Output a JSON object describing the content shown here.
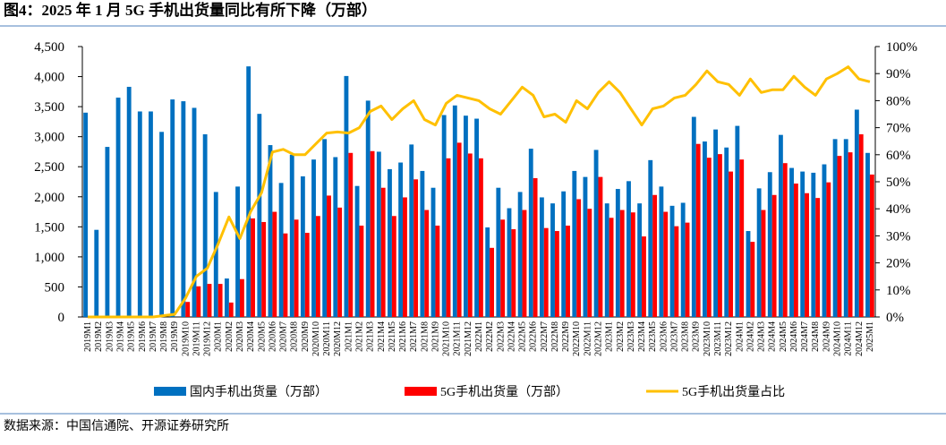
{
  "chart_data": {
    "type": "bar-line",
    "title": "图4：2025 年 1 月 5G 手机出货量同比有所下降（万部）",
    "source": "数据来源：中国信通院、开源证券研究所",
    "categories": [
      "2019M1",
      "2019M2",
      "2019M3",
      "2019M4",
      "2019M5",
      "2019M6",
      "2019M7",
      "2019M8",
      "2019M9",
      "2019M10",
      "2019M11",
      "2019M12",
      "2020M1",
      "2020M2",
      "2020M3",
      "2020M4",
      "2020M5",
      "2020M6",
      "2020M7",
      "2020M8",
      "2020M9",
      "2020M10",
      "2020M11",
      "2020M12",
      "2021M1",
      "2021M2",
      "2021M3",
      "2021M4",
      "2021M5",
      "2021M6",
      "2021M7",
      "2021M8",
      "2021M9",
      "2021M10",
      "2021M11",
      "2021M12",
      "2022M1",
      "2022M2",
      "2022M3",
      "2022M4",
      "2022M5",
      "2022M6",
      "2022M7",
      "2022M8",
      "2022M9",
      "2022M10",
      "2022M11",
      "2022M12",
      "2023M1",
      "2023M2",
      "2023M3",
      "2023M4",
      "2023M5",
      "2023M6",
      "2023M7",
      "2023M8",
      "2023M9",
      "2023M10",
      "2023M11",
      "2023M12",
      "2024M1",
      "2024M2",
      "2024M3",
      "2024M4",
      "2024M5",
      "2024M6",
      "2024M7",
      "2024M8",
      "2024M9",
      "2024M10",
      "2024M11",
      "2024M12",
      "2025M1"
    ],
    "series": [
      {
        "name": "国内手机出货量（万部）",
        "kind": "bar",
        "color": "#0070c0",
        "values": [
          3400,
          1450,
          2830,
          3650,
          3830,
          3420,
          3420,
          3080,
          3620,
          3590,
          3480,
          3040,
          2080,
          640,
          2170,
          4170,
          3380,
          2860,
          2230,
          2700,
          2340,
          2620,
          2960,
          2660,
          4010,
          2180,
          3600,
          2750,
          2460,
          2570,
          2870,
          2430,
          2150,
          3360,
          3520,
          3350,
          3300,
          1490,
          2150,
          1810,
          2080,
          2800,
          1990,
          1890,
          2090,
          2430,
          2330,
          2780,
          1890,
          2130,
          2260,
          1890,
          2610,
          2170,
          1850,
          1900,
          3330,
          2920,
          3120,
          2820,
          3180,
          1430,
          2140,
          2410,
          3030,
          2480,
          2420,
          2400,
          2540,
          2960,
          2960,
          3450,
          2730
        ]
      },
      {
        "name": "5G手机出货量（万部）",
        "kind": "bar",
        "color": "#ff0000",
        "values": [
          0,
          0,
          0,
          0,
          0,
          0,
          0,
          0,
          0,
          250,
          510,
          550,
          550,
          240,
          630,
          1640,
          1580,
          1750,
          1390,
          1620,
          1400,
          1680,
          2020,
          1820,
          2730,
          1520,
          2760,
          2150,
          1680,
          1990,
          2290,
          1780,
          1520,
          2640,
          2900,
          2720,
          2640,
          1150,
          1620,
          1460,
          1780,
          2310,
          1480,
          1430,
          1520,
          1960,
          1800,
          2330,
          1650,
          1780,
          1740,
          1340,
          2030,
          1750,
          1510,
          1570,
          2880,
          2650,
          2710,
          2420,
          2620,
          1250,
          1780,
          2030,
          2560,
          2220,
          2060,
          1980,
          2240,
          2680,
          2740,
          3040,
          2370
        ]
      },
      {
        "name": "5G手机出货量占比",
        "kind": "line",
        "axis": "y2",
        "color": "#ffc000",
        "values": [
          0,
          0,
          0,
          0,
          0,
          0,
          0,
          0.5,
          1,
          7,
          15,
          18,
          27,
          37,
          29,
          39,
          46,
          61,
          62,
          60,
          60,
          64,
          68,
          68.4,
          68,
          70,
          76,
          78,
          73,
          77,
          80,
          73,
          71,
          79,
          82,
          81,
          80,
          77,
          75,
          80,
          85,
          82,
          74,
          75,
          72,
          80,
          77,
          83,
          87,
          83,
          77,
          71,
          77,
          78,
          81,
          82,
          86,
          91,
          87,
          86,
          82,
          88,
          83,
          84,
          84,
          89,
          85,
          82,
          88,
          90,
          92.5,
          88,
          87
        ]
      }
    ],
    "ylim": [
      0,
      4500
    ],
    "yticks": [
      0,
      500,
      {
        "value": 1000,
        "label": "1,000"
      },
      {
        "value": 1500,
        "label": "1,500"
      },
      {
        "value": 2000,
        "label": "2,000"
      },
      {
        "value": 2500,
        "label": "2,500"
      },
      {
        "value": 3000,
        "label": "3,000"
      },
      {
        "value": 3500,
        "label": "3,500"
      },
      {
        "value": 4000,
        "label": "4,000"
      },
      {
        "value": 4500,
        "label": "4,500"
      }
    ],
    "y2lim": [
      0,
      100
    ],
    "y2ticks": [
      {
        "value": 0,
        "label": "0%"
      },
      {
        "value": 10,
        "label": "10%"
      },
      {
        "value": 20,
        "label": "20%"
      },
      {
        "value": 30,
        "label": "30%"
      },
      {
        "value": 40,
        "label": "40%"
      },
      {
        "value": 50,
        "label": "50%"
      },
      {
        "value": 60,
        "label": "60%"
      },
      {
        "value": 70,
        "label": "70%"
      },
      {
        "value": 80,
        "label": "80%"
      },
      {
        "value": 90,
        "label": "90%"
      },
      {
        "value": 100,
        "label": "100%"
      }
    ],
    "legend": "bottom"
  }
}
